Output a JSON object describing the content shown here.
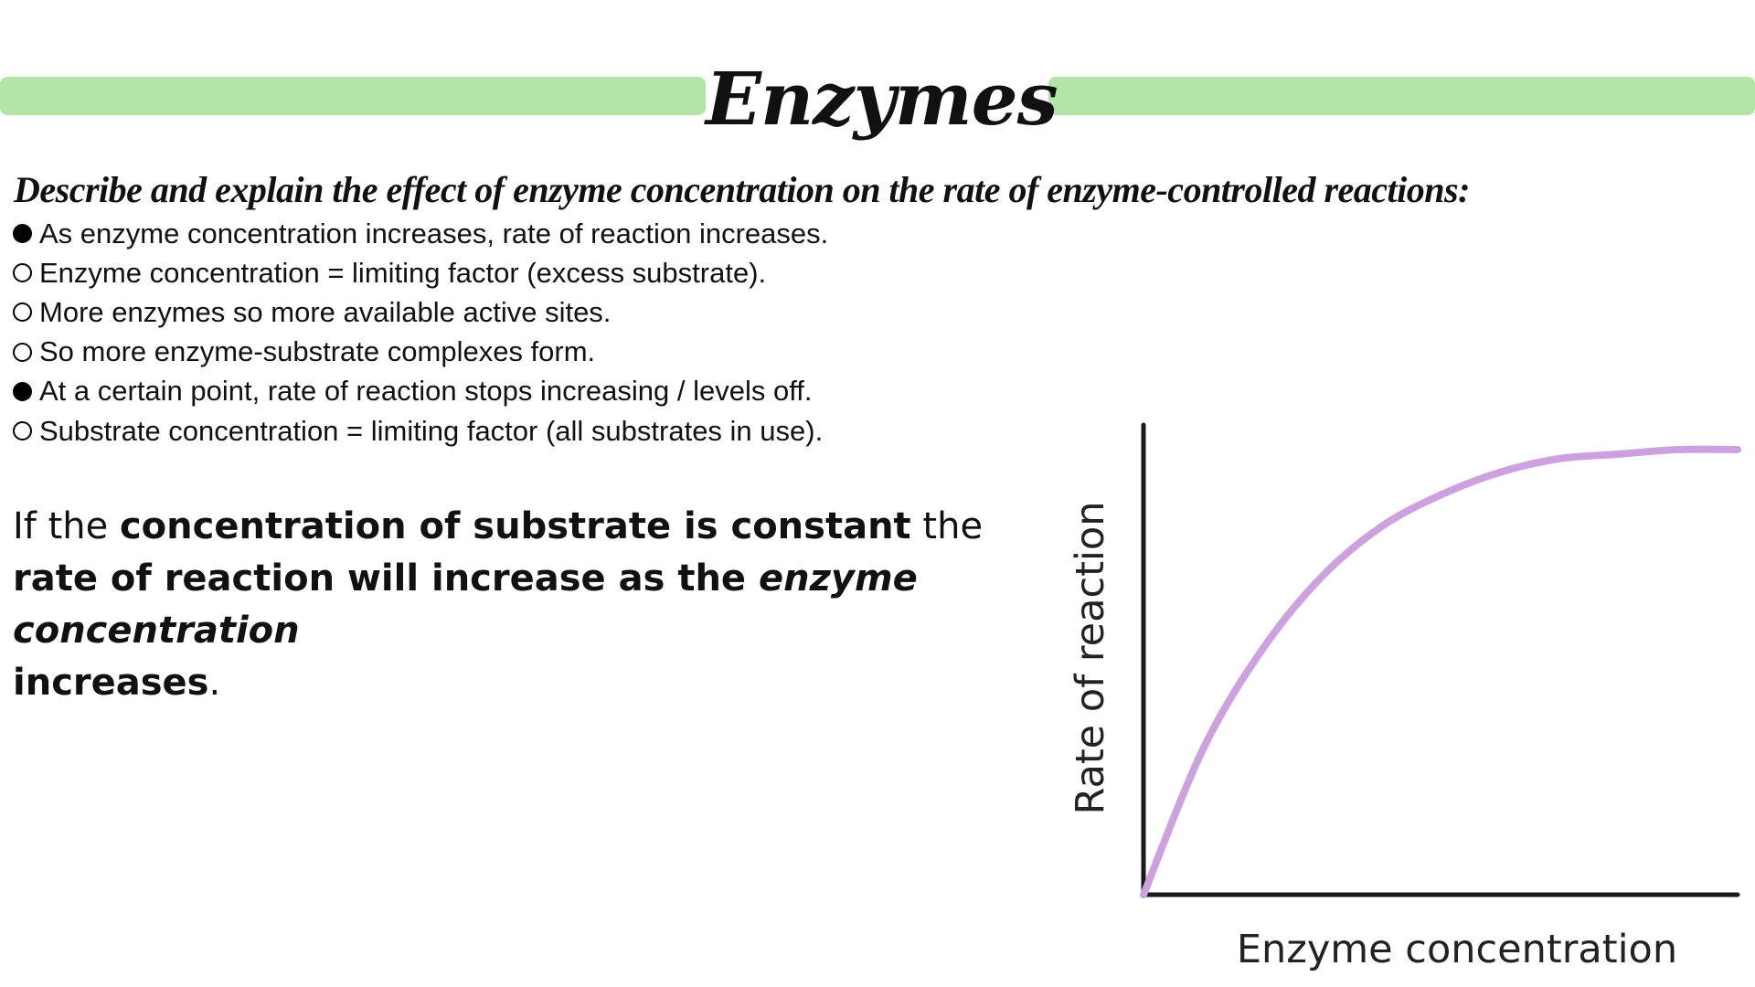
{
  "colors": {
    "accent_bar": "#b3e5a6",
    "curve": "#cda1e0",
    "axis": "#1a1a1a"
  },
  "title": "Enzymes",
  "question": "Describe and explain the effect of enzyme concentration on the rate of enzyme-controlled reactions:",
  "bullets": [
    {
      "style": "filled",
      "text": "As enzyme concentration increases, rate of reaction increases."
    },
    {
      "style": "open",
      "text": "Enzyme concentration = limiting factor (excess substrate)."
    },
    {
      "style": "open",
      "text": "More enzymes so more available active sites."
    },
    {
      "style": "open",
      "text": "So more enzyme-substrate complexes form."
    },
    {
      "style": "filled",
      "text": "At a certain point, rate of reaction stops increasing / levels off."
    },
    {
      "style": "open",
      "text": "Substrate concentration = limiting factor (all substrates in use)."
    }
  ],
  "summary": {
    "p1": "If the ",
    "b1": "concentration of substrate is constant",
    "p2": " the ",
    "b2": "rate of reaction will increase as the ",
    "bi": "enzyme concentration",
    "b3": "increases",
    "p3": "."
  },
  "chart_data": {
    "type": "line",
    "xlabel": "Enzyme concentration",
    "ylabel": "Rate of reaction",
    "xlim": [
      0,
      1
    ],
    "ylim": [
      0,
      1
    ],
    "grid": false,
    "series": [
      {
        "x": [
          0,
          0.1,
          0.2,
          0.3,
          0.4,
          0.5,
          0.6,
          0.7,
          0.8,
          0.9,
          1.0
        ],
        "values": [
          0,
          0.32,
          0.54,
          0.7,
          0.81,
          0.88,
          0.93,
          0.96,
          0.97,
          0.98,
          0.98
        ]
      }
    ]
  }
}
